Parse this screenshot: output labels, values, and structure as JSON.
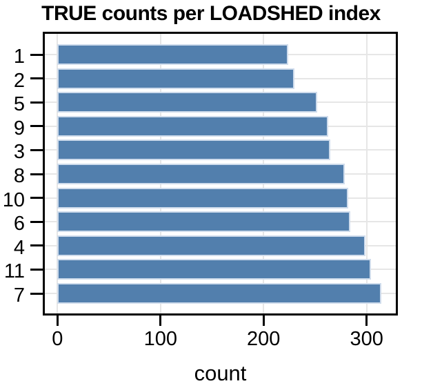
{
  "title": "TRUE counts per LOADSHED index",
  "chart_data": {
    "type": "bar",
    "orientation": "horizontal",
    "title": "TRUE counts per LOADSHED index",
    "xlabel": "count",
    "ylabel": "",
    "categories": [
      "1",
      "2",
      "5",
      "9",
      "3",
      "8",
      "10",
      "6",
      "4",
      "11",
      "7"
    ],
    "values": [
      224,
      230,
      252,
      263,
      265,
      279,
      282,
      284,
      299,
      304,
      314
    ],
    "x_ticks": [
      0,
      100,
      200,
      300
    ],
    "xlim": [
      0,
      330
    ],
    "grid": true,
    "legend": "none",
    "sort_order": "ascending",
    "colors": {
      "bar_fill": "#527fad",
      "bar_border": "#cfdcec",
      "gridline": "#e6e6e6",
      "panel_border": "#000000",
      "text": "#000000"
    }
  }
}
